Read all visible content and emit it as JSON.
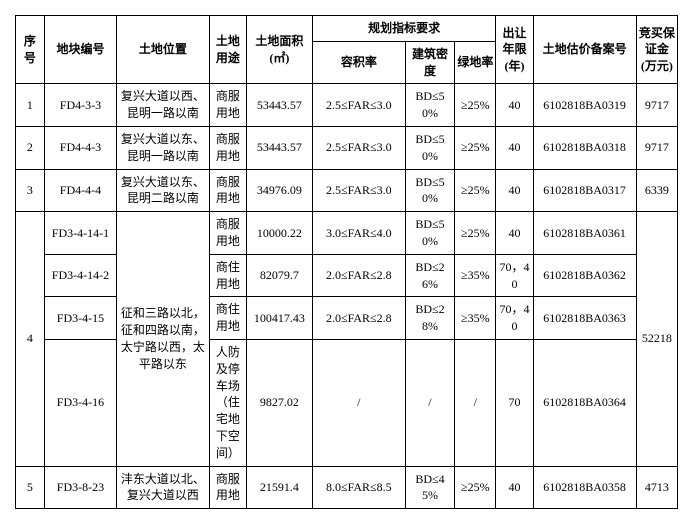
{
  "headers": {
    "seq": "序号",
    "parcel_id": "地块编号",
    "location": "土地位置",
    "land_use": "土地用途",
    "area": "土地面积(㎡)",
    "planning_group": "规划指标要求",
    "far": "容积率",
    "density": "建筑密度",
    "green": "绿地率",
    "years": "出让年限(年)",
    "case_no": "土地估价备案号",
    "deposit": "竞买保证金(万元)"
  },
  "rows": {
    "r1": {
      "seq": "1",
      "parcel": "FD4-3-3",
      "location": "复兴大道以西、昆明一路以南",
      "use": "商服用地",
      "area": "53443.57",
      "far": "2.5≤FAR≤3.0",
      "density": "BD≤50%",
      "green": "≥25%",
      "years": "40",
      "case": "6102818BA0319",
      "deposit": "9717"
    },
    "r2": {
      "seq": "2",
      "parcel": "FD4-4-3",
      "location": "复兴大道以东、昆明一路以南",
      "use": "商服用地",
      "area": "53443.57",
      "far": "2.5≤FAR≤3.0",
      "density": "BD≤50%",
      "green": "≥25%",
      "years": "40",
      "case": "6102818BA0318",
      "deposit": "9717"
    },
    "r3": {
      "seq": "3",
      "parcel": "FD4-4-4",
      "location": "复兴大道以东、昆明二路以南",
      "use": "商服用地",
      "area": "34976.09",
      "far": "2.5≤FAR≤3.0",
      "density": "BD≤50%",
      "green": "≥25%",
      "years": "40",
      "case": "6102818BA0317",
      "deposit": "6339"
    },
    "r4": {
      "seq": "4",
      "location": "征和三路以北，征和四路以南，太宁路以西，太平路以东",
      "deposit": "52218",
      "sub": {
        "a": {
          "parcel": "FD3-4-14-1",
          "use": "商服用地",
          "area": "10000.22",
          "far": "3.0≤FAR≤4.0",
          "density": "BD≤50%",
          "green": "≥25%",
          "years": "40",
          "case": "6102818BA0361"
        },
        "b": {
          "parcel": "FD3-4-14-2",
          "use": "商住用地",
          "area": "82079.7",
          "far": "2.0≤FAR≤2.8",
          "density": "BD≤26%",
          "green": "≥35%",
          "years": "70，40",
          "case": "6102818BA0362"
        },
        "c": {
          "parcel": "FD3-4-15",
          "use": "商住用地",
          "area": "100417.43",
          "far": "2.0≤FAR≤2.8",
          "density": "BD≤28%",
          "green": "≥35%",
          "years": "70，40",
          "case": "6102818BA0363"
        },
        "d": {
          "parcel": "FD3-4-16",
          "use": "人防及停车场（住宅地下空间）",
          "area": "9827.02",
          "far": "/",
          "density": "/",
          "green": "/",
          "years": "70",
          "case": "6102818BA0364"
        }
      }
    },
    "r5": {
      "seq": "5",
      "parcel": "FD3-8-23",
      "location": "沣东大道以北、复兴大道以西",
      "use": "商服用地",
      "area": "21591.4",
      "far": "8.0≤FAR≤8.5",
      "density": "BD≤45%",
      "green": "≥25%",
      "years": "40",
      "case": "6102818BA0358",
      "deposit": "4713"
    }
  }
}
